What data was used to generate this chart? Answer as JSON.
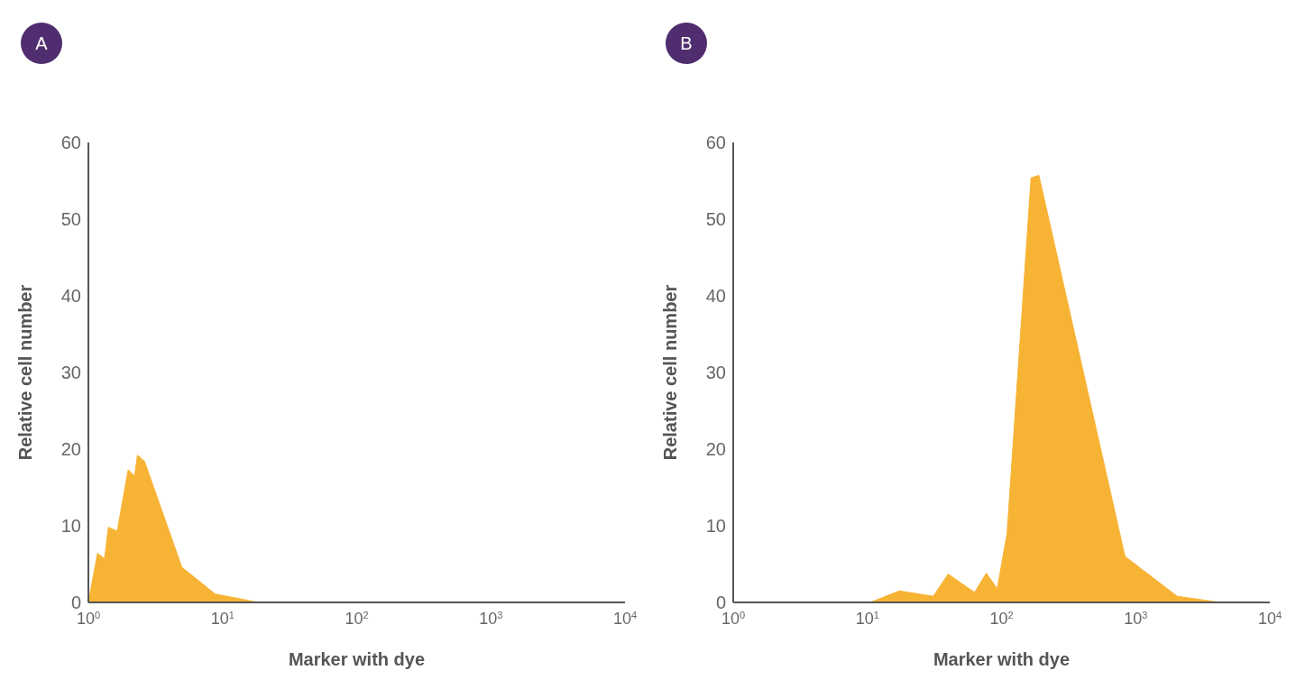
{
  "chart_data": [
    {
      "type": "area",
      "title": "A",
      "xlabel": "Marker with dye",
      "ylabel": "Relative cell number",
      "log": "x",
      "color": "#f7b334",
      "x": [
        1,
        1.17,
        1.32,
        1.41,
        1.64,
        1.98,
        2.21,
        2.32,
        2.62,
        4.97,
        8.8,
        18.6
      ],
      "values": [
        0,
        6.4,
        5.7,
        9.8,
        9.3,
        17.3,
        16.5,
        19.2,
        18.4,
        4.6,
        1.1,
        0
      ],
      "xlim": [
        1,
        10000
      ],
      "xticks": [
        {
          "value": 1,
          "label": "10$^{0}$"
        },
        {
          "value": 10,
          "label": "10$^{1}$"
        },
        {
          "value": 100,
          "label": "10$^{2}$"
        },
        {
          "value": 1000,
          "label": "10$^{3}$"
        },
        {
          "value": 10000,
          "label": "10$^{4}$"
        }
      ],
      "ylim": [
        0,
        60
      ],
      "yticks": [
        0,
        10,
        20,
        30,
        40,
        50,
        60
      ]
    },
    {
      "type": "area",
      "title": "B",
      "xlabel": "Marker with dye",
      "ylabel": "Relative cell number",
      "log": "x",
      "color": "#f7b334",
      "x": [
        10.5,
        17.3,
        31,
        40,
        63,
        77,
        93,
        110,
        166,
        190,
        832,
        2040,
        4270
      ],
      "values": [
        0,
        1.5,
        0.8,
        3.7,
        1.3,
        3.8,
        1.8,
        9.0,
        55.4,
        55.7,
        6.0,
        0.8,
        0
      ],
      "xlim": [
        1,
        10000
      ],
      "xticks": [
        {
          "value": 1,
          "label": "10$^{0}$"
        },
        {
          "value": 10,
          "label": "10$^{1}$"
        },
        {
          "value": 100,
          "label": "10$^{2}$"
        },
        {
          "value": 1000,
          "label": "10$^{3}$"
        },
        {
          "value": 10000,
          "label": "10$^{4}$"
        }
      ],
      "ylim": [
        0,
        60
      ],
      "yticks": [
        0,
        10,
        20,
        30,
        40,
        50,
        60
      ]
    }
  ]
}
